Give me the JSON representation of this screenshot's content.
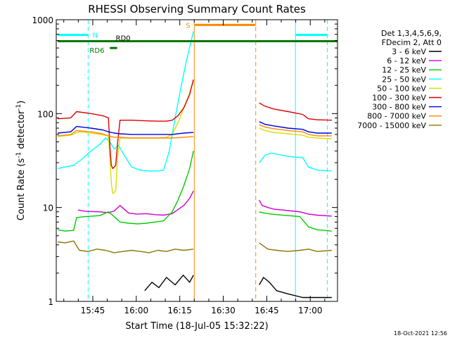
{
  "chart_data": {
    "type": "line",
    "title": "RHESSI Observing Summary Count Rates",
    "xlabel": "Start Time (18-Jul-05 15:32:22)",
    "ylabel_prefix": "Count Rate (s",
    "ylabel_sup": "-1",
    "ylabel_suffix": " detector",
    "ylabel_sup2": "-1",
    "ylabel_end": ")",
    "yscale": "log",
    "ylim": [
      1,
      1000
    ],
    "y_ticks": [
      1,
      10,
      100,
      1000
    ],
    "y_tick_labels": [
      "1",
      "10",
      "100",
      "1000"
    ],
    "xlim_minutes": [
      0,
      97
    ],
    "x_ticks_minutes": [
      12.6,
      27.6,
      42.6,
      57.6,
      72.6,
      87.6
    ],
    "x_tick_labels": [
      "15:45",
      "16:00",
      "16:15",
      "16:30",
      "16:45",
      "17:00"
    ],
    "legend_header": [
      "Det 1,3,4,5,6,9,",
      "FDecim 2, Att 0"
    ],
    "series": [
      {
        "name": "3 - 6 keV",
        "color": "#000000",
        "segments": [
          {
            "x": [
              30.5,
              33.0,
              35.4,
              38.0,
              41.0,
              43.8,
              46.0,
              47.3
            ],
            "y": [
              1.3,
              1.6,
              1.4,
              1.8,
              1.5,
              1.9,
              1.6,
              1.9
            ]
          },
          {
            "x": [
              70.0,
              71.5,
              73.5,
              76.0,
              80.0,
              85.0,
              90.0,
              95.0
            ],
            "y": [
              1.5,
              1.8,
              1.6,
              1.3,
              1.2,
              1.1,
              1.1,
              1.1
            ]
          }
        ]
      },
      {
        "name": "6 - 12 keV",
        "color": "#cc00cc",
        "segments": [
          {
            "x": [
              7.5,
              10.0,
              15.0,
              18.0,
              20.0,
              22.0,
              25.0,
              28.0,
              31.0,
              34.0,
              37.0,
              40.0,
              42.0,
              44.0,
              46.0,
              47.3
            ],
            "y": [
              9.4,
              9.1,
              9.0,
              8.8,
              9.2,
              10.5,
              8.7,
              8.5,
              8.6,
              8.4,
              8.3,
              8.6,
              9.5,
              10.5,
              12.5,
              15.0
            ]
          },
          {
            "x": [
              70.0,
              71.0,
              73.0,
              75.0,
              78.0,
              81.0,
              84.0,
              87.0,
              90.0,
              95.0
            ],
            "y": [
              12.0,
              10.5,
              10.0,
              9.6,
              9.4,
              9.2,
              9.0,
              8.5,
              8.3,
              8.1
            ]
          }
        ]
      },
      {
        "name": "12 - 25 keV",
        "color": "#00cc00",
        "segments": [
          {
            "x": [
              0.5,
              3.0,
              6.0,
              7.0,
              10.0,
              15.0,
              18.0,
              20.0,
              22.0,
              25.0,
              28.0,
              31.0,
              34.0,
              37.0,
              40.0,
              42.0,
              44.0,
              46.0,
              47.3
            ],
            "y": [
              5.8,
              5.6,
              5.7,
              7.8,
              8.0,
              8.2,
              9.0,
              8.0,
              7.0,
              6.8,
              6.7,
              6.8,
              7.0,
              7.2,
              9.0,
              12.0,
              17.0,
              26.0,
              40.0
            ]
          },
          {
            "x": [
              70.0,
              71.0,
              73.0,
              76.0,
              80.0,
              84.0,
              87.0,
              90.0,
              95.0
            ],
            "y": [
              9.0,
              8.8,
              8.6,
              8.4,
              8.2,
              8.0,
              6.2,
              5.8,
              5.6
            ]
          }
        ]
      },
      {
        "name": "25 - 50 keV",
        "color": "#00ffff",
        "segments": [
          {
            "x": [
              0.5,
              3.0,
              6.0,
              9.0,
              12.0,
              15.0,
              17.0,
              18.5,
              20.0,
              21.5,
              23.0,
              26.0,
              29.0,
              32.0,
              35.0,
              37.0,
              39.0,
              41.0,
              43.0,
              45.0,
              47.3
            ],
            "y": [
              26.0,
              27.0,
              28.0,
              33.0,
              40.0,
              47.0,
              55.0,
              50.0,
              42.0,
              46.0,
              38.0,
              27.0,
              25.0,
              24.5,
              24.5,
              25.0,
              40.0,
              90.0,
              190.0,
              380.0,
              750.0
            ]
          },
          {
            "x": [
              70.0,
              72.0,
              74.0,
              76.0,
              78.0,
              80.0,
              82.0,
              85.0,
              87.0,
              90.0,
              95.0
            ],
            "y": [
              30.0,
              36.0,
              38.0,
              37.0,
              36.0,
              35.0,
              34.5,
              34.0,
              27.0,
              25.0,
              24.5
            ]
          }
        ]
      },
      {
        "name": "50 - 100 keV",
        "color": "#dddd00",
        "segments": [
          {
            "x": [
              0.5,
              5.0,
              8.0,
              12.0,
              15.0,
              18.0,
              18.6,
              19.0,
              19.5,
              20.5,
              21.2,
              22.0,
              26.0,
              30.0,
              35.0,
              38.0,
              40.0,
              42.0,
              44.0,
              46.0,
              47.3
            ],
            "y": [
              57.0,
              59.0,
              64.0,
              62.0,
              60.0,
              58.0,
              30.0,
              18.0,
              14.0,
              15.0,
              35.0,
              55.0,
              55.0,
              55.0,
              55.0,
              56.0,
              60.0,
              80.0,
              115.0,
              165.0,
              230.0
            ]
          },
          {
            "x": [
              70.0,
              72.0,
              75.0,
              80.0,
              85.0,
              87.0,
              90.0,
              95.0
            ],
            "y": [
              70.0,
              66.0,
              63.0,
              61.0,
              59.0,
              56.0,
              55.0,
              54.0
            ]
          }
        ]
      },
      {
        "name": "100 - 300 keV",
        "color": "#dd0000",
        "segments": [
          {
            "x": [
              0.5,
              5.0,
              7.0,
              12.0,
              16.0,
              18.0,
              18.6,
              19.0,
              19.5,
              20.5,
              21.2,
              22.0,
              26.0,
              30.0,
              35.0,
              38.0,
              40.0,
              42.0,
              44.0,
              46.0,
              47.3
            ],
            "y": [
              88.0,
              90.0,
              105.0,
              100.0,
              95.0,
              90.0,
              40.0,
              28.0,
              26.0,
              28.0,
              50.0,
              85.0,
              85.0,
              84.0,
              83.0,
              83.0,
              85.0,
              95.0,
              115.0,
              160.0,
              230.0
            ]
          },
          {
            "x": [
              70.0,
              72.0,
              75.0,
              80.0,
              85.0,
              87.0,
              90.0,
              95.0
            ],
            "y": [
              130.0,
              120.0,
              112.0,
              105.0,
              98.0,
              88.0,
              86.0,
              85.0
            ]
          }
        ]
      },
      {
        "name": "300 - 800 keV",
        "color": "#0000dd",
        "segments": [
          {
            "x": [
              0.5,
              5.0,
              7.0,
              12.0,
              16.0,
              18.0,
              20.0,
              22.0,
              26.0,
              30.0,
              35.0,
              40.0,
              44.0,
              47.3
            ],
            "y": [
              62.0,
              64.0,
              73.0,
              70.0,
              67.0,
              64.0,
              62.0,
              61.0,
              60.0,
              60.0,
              60.0,
              60.0,
              62.0,
              63.0
            ]
          },
          {
            "x": [
              70.0,
              72.0,
              75.0,
              80.0,
              85.0,
              87.0,
              90.0,
              95.0
            ],
            "y": [
              82.0,
              77.0,
              74.0,
              70.0,
              68.0,
              64.0,
              62.0,
              62.0
            ]
          }
        ]
      },
      {
        "name": "800 - 7000 keV",
        "color": "#ff8800",
        "segments": [
          {
            "x": [
              0.5,
              5.0,
              7.0,
              12.0,
              16.0,
              18.0,
              20.0,
              22.0,
              26.0,
              30.0,
              35.0,
              40.0,
              44.0,
              47.3
            ],
            "y": [
              58.0,
              60.0,
              66.0,
              64.0,
              61.0,
              58.0,
              56.0,
              56.0,
              55.0,
              55.0,
              55.0,
              55.0,
              56.0,
              57.0
            ]
          },
          {
            "x": [
              70.0,
              72.0,
              75.0,
              80.0,
              85.0,
              87.0,
              90.0,
              95.0
            ],
            "y": [
              76.0,
              72.0,
              69.0,
              66.0,
              64.0,
              60.0,
              58.0,
              58.0
            ]
          }
        ]
      },
      {
        "name": "7000 - 15000 keV",
        "color": "#887700",
        "segments": [
          {
            "x": [
              0.5,
              3.0,
              6.0,
              8.0,
              11.0,
              14.0,
              17.0,
              20.0,
              23.0,
              26.0,
              29.0,
              32.0,
              35.0,
              38.0,
              41.0,
              44.0,
              47.3
            ],
            "y": [
              4.3,
              4.2,
              4.4,
              3.5,
              3.4,
              3.6,
              3.5,
              3.3,
              3.4,
              3.5,
              3.4,
              3.3,
              3.5,
              3.4,
              3.6,
              3.5,
              3.6
            ]
          },
          {
            "x": [
              70.0,
              73.0,
              76.0,
              80.0,
              84.0,
              87.0,
              90.0,
              95.0
            ],
            "y": [
              4.2,
              3.6,
              3.5,
              3.4,
              3.5,
              3.6,
              3.4,
              3.5
            ]
          }
        ]
      }
    ],
    "spans": {
      "saa": {
        "label": "S",
        "color": "#ff8800",
        "x_start": 47.6,
        "x_end": 68.8,
        "y": 880
      },
      "night": {
        "label": "N",
        "color": "#00ffff",
        "segments": [
          [
            0.5,
            11.0
          ],
          [
            82.5,
            93.5
          ]
        ],
        "y": 690
      },
      "rd0": {
        "label": "RD0",
        "color": "#007700",
        "x_start": 0.5,
        "x_end": 97,
        "y": 590
      },
      "rd6": {
        "label": "RD6",
        "color": "#007700",
        "x_start": 18.5,
        "x_end": 21.0,
        "y": 500
      }
    },
    "vlines": [
      {
        "x": 11.0,
        "color": "#00ffff",
        "dashed": true
      },
      {
        "x": 47.6,
        "color": "#ff8800",
        "dashed": false
      },
      {
        "x": 68.8,
        "color": "#ff8800",
        "dashed": true
      },
      {
        "x": 82.5,
        "color": "#00ffff",
        "dashed": false
      },
      {
        "x": 93.5,
        "color": "#00ffff",
        "dashed": true
      }
    ],
    "footer_date": "18-Oct-2021 12:56"
  }
}
